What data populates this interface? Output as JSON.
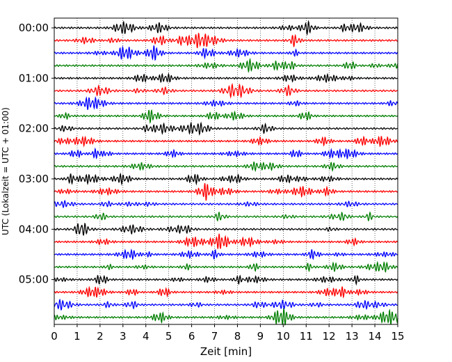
{
  "chart_data": {
    "type": "line",
    "xlabel": "Zeit  [min]",
    "ylabel": "UTC (Lokalzeit = UTC + 01:00)",
    "xlim": [
      0,
      15
    ],
    "x_ticks": [
      "0",
      "1",
      "2",
      "3",
      "4",
      "5",
      "6",
      "7",
      "8",
      "9",
      "10",
      "11",
      "12",
      "13",
      "14",
      "15"
    ],
    "y_ticks": [
      "00:00",
      "01:00",
      "02:00",
      "03:00",
      "04:00",
      "05:00"
    ],
    "grid": "vertical-dotted",
    "trace_interval_min": 15,
    "trace_colors": [
      "#000000",
      "#ff0000",
      "#0000ff",
      "#007f00"
    ],
    "traces": [
      {
        "start": "00:00",
        "color": "#000000"
      },
      {
        "start": "00:15",
        "color": "#ff0000"
      },
      {
        "start": "00:30",
        "color": "#0000ff"
      },
      {
        "start": "00:45",
        "color": "#007f00"
      },
      {
        "start": "01:00",
        "color": "#000000"
      },
      {
        "start": "01:15",
        "color": "#ff0000"
      },
      {
        "start": "01:30",
        "color": "#0000ff"
      },
      {
        "start": "01:45",
        "color": "#007f00"
      },
      {
        "start": "02:00",
        "color": "#000000"
      },
      {
        "start": "02:15",
        "color": "#ff0000"
      },
      {
        "start": "02:30",
        "color": "#0000ff"
      },
      {
        "start": "02:45",
        "color": "#007f00"
      },
      {
        "start": "03:00",
        "color": "#000000"
      },
      {
        "start": "03:15",
        "color": "#ff0000"
      },
      {
        "start": "03:30",
        "color": "#0000ff"
      },
      {
        "start": "03:45",
        "color": "#007f00"
      },
      {
        "start": "04:00",
        "color": "#000000"
      },
      {
        "start": "04:15",
        "color": "#ff0000"
      },
      {
        "start": "04:30",
        "color": "#0000ff"
      },
      {
        "start": "04:45",
        "color": "#007f00"
      },
      {
        "start": "05:00",
        "color": "#000000"
      },
      {
        "start": "05:15",
        "color": "#ff0000"
      },
      {
        "start": "05:30",
        "color": "#0000ff"
      },
      {
        "start": "05:45",
        "color": "#007f00"
      }
    ]
  }
}
